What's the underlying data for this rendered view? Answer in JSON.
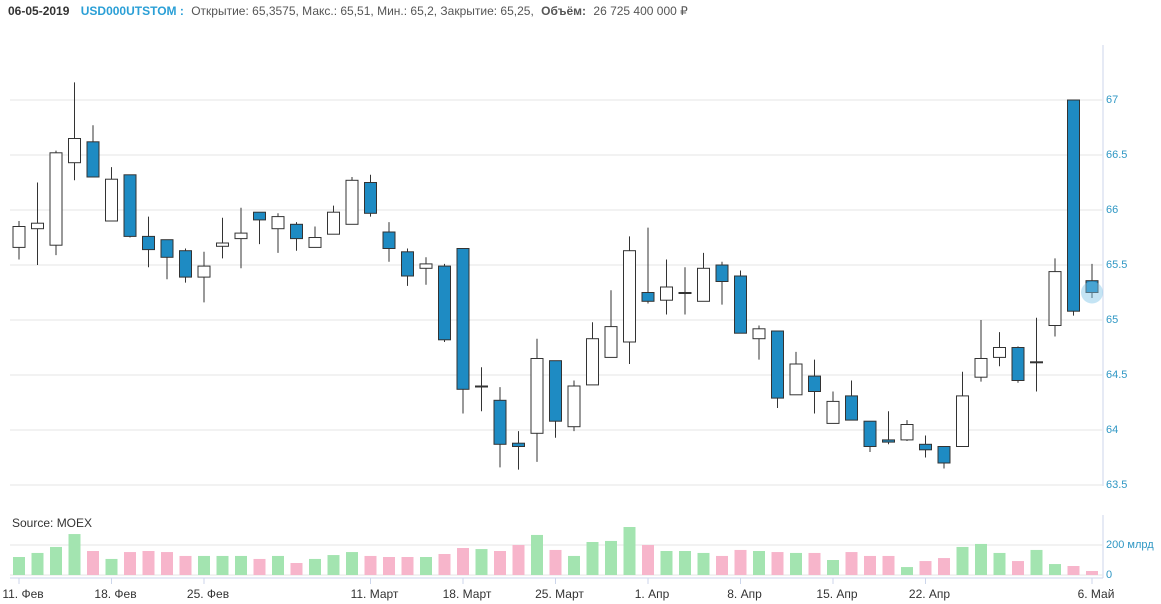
{
  "header": {
    "date": "06-05-2019",
    "ticker": "USD000UTSTOM :",
    "summary": "Открытие: 65,3575, Макс.: 65,51, Мин.: 65,2, Закрытие: 65,25,",
    "volume_label": "Объём:",
    "volume_value": "26 725 400 000 ₽"
  },
  "chart_data": [
    {
      "type": "candlestick",
      "categories": [
        "11. Фев",
        null,
        null,
        null,
        null,
        "18. Фев",
        null,
        null,
        null,
        null,
        "25. Фев",
        null,
        null,
        null,
        null,
        null,
        null,
        null,
        null,
        "11. Март",
        null,
        null,
        null,
        null,
        "18. Март",
        null,
        null,
        null,
        null,
        "25. Март",
        null,
        null,
        null,
        null,
        "1. Апр",
        null,
        null,
        null,
        null,
        "8. Апр",
        null,
        null,
        null,
        null,
        "15. Апр",
        null,
        null,
        null,
        null,
        "22. Апр",
        null,
        null,
        null,
        null,
        null,
        null,
        null,
        null,
        "6. Май"
      ],
      "open": [
        65.66,
        65.83,
        65.68,
        66.43,
        66.62,
        65.9,
        66.32,
        65.76,
        65.73,
        65.63,
        65.39,
        65.67,
        65.74,
        65.98,
        65.83,
        65.87,
        65.66,
        65.78,
        65.87,
        66.25,
        65.8,
        65.62,
        65.47,
        65.49,
        65.65,
        64.4,
        64.27,
        63.88,
        63.97,
        64.63,
        64.03,
        64.41,
        64.66,
        64.8,
        65.25,
        65.18,
        65.25,
        65.17,
        65.5,
        65.4,
        64.83,
        64.9,
        64.32,
        64.49,
        64.06,
        64.31,
        64.08,
        63.91,
        63.91,
        63.87,
        63.85,
        63.85,
        64.48,
        64.66,
        64.75,
        64.62,
        64.95,
        67.0,
        65.3575
      ],
      "high": [
        65.9,
        66.25,
        66.54,
        67.16,
        66.77,
        66.39,
        66.32,
        65.94,
        65.73,
        65.65,
        65.62,
        65.93,
        66.02,
        65.98,
        65.97,
        65.89,
        65.85,
        66.04,
        66.3,
        66.32,
        65.89,
        65.65,
        65.57,
        65.51,
        65.65,
        64.57,
        64.39,
        63.99,
        64.83,
        64.63,
        64.45,
        64.98,
        65.27,
        65.76,
        65.84,
        65.55,
        65.48,
        65.61,
        65.53,
        65.45,
        64.95,
        64.9,
        64.71,
        64.64,
        64.35,
        64.45,
        64.08,
        64.17,
        64.09,
        63.95,
        63.85,
        64.53,
        65.0,
        64.89,
        64.76,
        65.02,
        65.56,
        67.0,
        65.51
      ],
      "low": [
        65.55,
        65.5,
        65.59,
        66.27,
        66.3,
        65.9,
        65.75,
        65.48,
        65.37,
        65.34,
        65.16,
        65.56,
        65.47,
        65.69,
        65.61,
        65.63,
        65.66,
        65.78,
        65.87,
        65.94,
        65.53,
        65.31,
        65.32,
        64.8,
        64.15,
        64.17,
        63.66,
        63.64,
        63.71,
        63.93,
        63.99,
        64.41,
        64.66,
        64.6,
        65.15,
        65.05,
        65.05,
        65.17,
        65.14,
        64.88,
        64.64,
        64.2,
        64.32,
        64.15,
        64.06,
        64.09,
        63.8,
        63.87,
        63.9,
        63.75,
        63.65,
        63.85,
        64.44,
        64.58,
        64.43,
        64.35,
        64.85,
        65.04,
        65.2
      ],
      "close": [
        65.85,
        65.88,
        66.52,
        66.65,
        66.3,
        66.28,
        65.76,
        65.64,
        65.57,
        65.39,
        65.49,
        65.7,
        65.79,
        65.91,
        65.94,
        65.74,
        65.75,
        65.98,
        66.27,
        65.97,
        65.65,
        65.4,
        65.51,
        64.82,
        64.37,
        64.4,
        63.87,
        63.85,
        64.65,
        64.08,
        64.4,
        64.83,
        64.94,
        65.63,
        65.17,
        65.3,
        65.25,
        65.47,
        65.35,
        64.88,
        64.92,
        64.29,
        64.6,
        64.35,
        64.26,
        64.09,
        63.85,
        63.89,
        64.05,
        63.82,
        63.7,
        64.31,
        64.65,
        64.75,
        64.45,
        64.62,
        65.44,
        65.08,
        65.25
      ],
      "ylim": [
        63.5,
        67.5
      ],
      "yticks": [
        63.5,
        64,
        64.5,
        65,
        65.5,
        66,
        66.5,
        67
      ],
      "up_color": "#ffffff",
      "down_color": "#1e8bc3",
      "grid": true
    },
    {
      "type": "bar",
      "annotation": "Source: MOEX",
      "values": [
        120,
        147,
        187,
        273,
        160,
        107,
        153,
        160,
        153,
        127,
        127,
        127,
        127,
        107,
        127,
        80,
        107,
        133,
        153,
        127,
        120,
        120,
        120,
        140,
        180,
        173,
        160,
        200,
        267,
        167,
        127,
        220,
        227,
        320,
        200,
        160,
        160,
        147,
        127,
        167,
        160,
        153,
        147,
        147,
        100,
        153,
        127,
        127,
        53,
        93,
        113,
        187,
        207,
        147,
        93,
        167,
        73,
        60,
        26.73
      ],
      "ylim": [
        0,
        400
      ],
      "yticks": [
        0,
        {
          "value": 200,
          "label": "200 млрд"
        }
      ],
      "up_color": "#a3e4b0",
      "down_color": "#f7b5cb",
      "grid": true
    }
  ]
}
